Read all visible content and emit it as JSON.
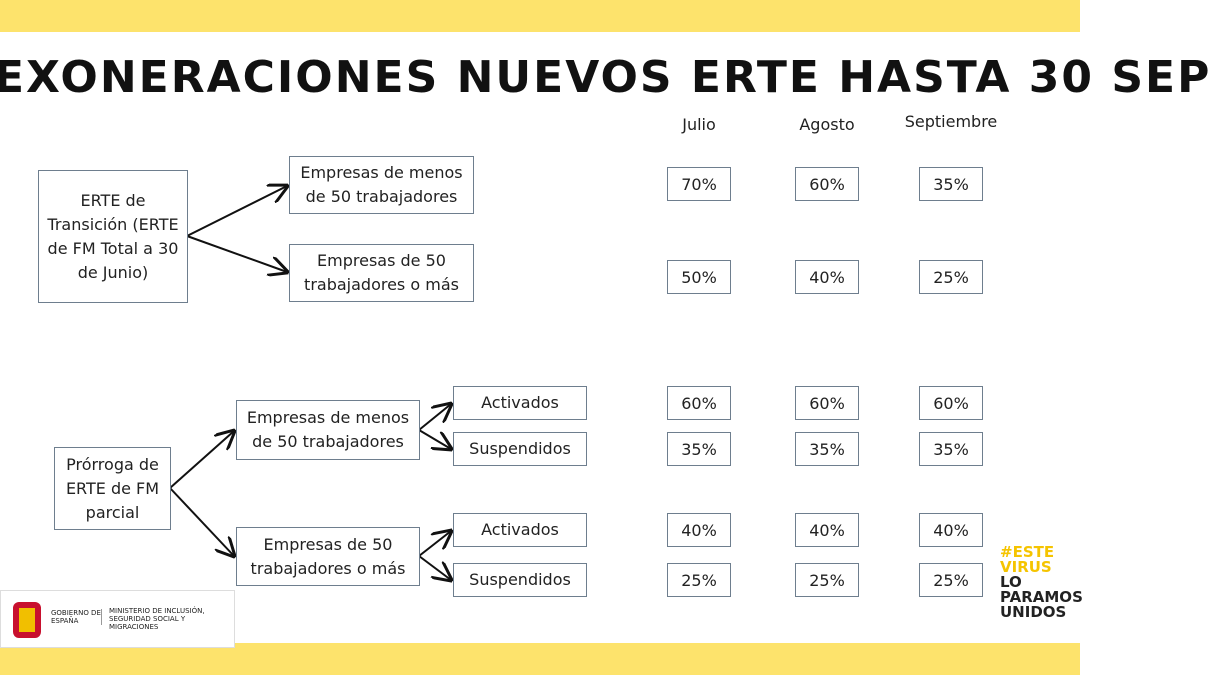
{
  "title": "EXONERACIONES NUEVOS ERTE HASTA 30 SEP",
  "columns": [
    "Julio",
    "Agosto",
    "Septiembre"
  ],
  "groups": [
    {
      "label": "ERTE de Transición (ERTE de FM Total a 30 de Junio)",
      "branches": [
        {
          "label": "Empresas de menos de 50 trabajadores",
          "values": [
            "70%",
            "60%",
            "35%"
          ]
        },
        {
          "label": "Empresas de 50 trabajadores o más",
          "values": [
            "50%",
            "40%",
            "25%"
          ]
        }
      ]
    },
    {
      "label": "Prórroga de ERTE de FM parcial",
      "branches": [
        {
          "label": "Empresas de menos de 50 trabajadores",
          "sub": [
            {
              "label": "Activados",
              "values": [
                "60%",
                "60%",
                "60%"
              ]
            },
            {
              "label": "Suspendidos",
              "values": [
                "35%",
                "35%",
                "35%"
              ]
            }
          ]
        },
        {
          "label": "Empresas de 50 trabajadores o más",
          "sub": [
            {
              "label": "Activados",
              "values": [
                "40%",
                "40%",
                "40%"
              ]
            },
            {
              "label": "Suspendidos",
              "values": [
                "25%",
                "25%",
                "25%"
              ]
            }
          ]
        }
      ]
    }
  ],
  "logos": {
    "gobierno": "GOBIERNO DE ESPAÑA",
    "ministerio": "MINISTERIO DE INCLUSIÓN, SEGURIDAD SOCIAL Y MIGRACIONES",
    "campaign": [
      "#ESTE VIRUS",
      "LO PARAMOS",
      "UNIDOS"
    ]
  }
}
